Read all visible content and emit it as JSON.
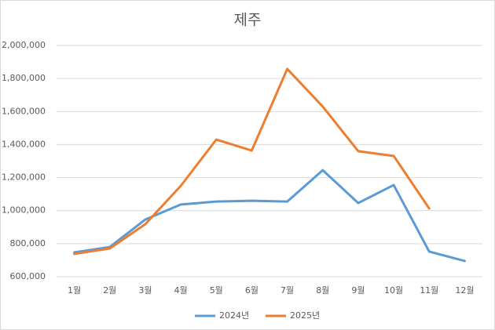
{
  "chart_data": {
    "type": "line",
    "title": "제주",
    "categories": [
      "1월",
      "2월",
      "3월",
      "4월",
      "5월",
      "6월",
      "7월",
      "8월",
      "9월",
      "10월",
      "11월",
      "12월"
    ],
    "series": [
      {
        "name": "2024년",
        "color": "#5b9bd5",
        "values": [
          747000,
          780000,
          946000,
          1037000,
          1055000,
          1060000,
          1055000,
          1245000,
          1046000,
          1155000,
          752000,
          695000
        ]
      },
      {
        "name": "2025년",
        "color": "#ed7d31",
        "values": [
          738000,
          771000,
          918000,
          1150000,
          1430000,
          1364000,
          1858000,
          1630000,
          1360000,
          1331000,
          1013000,
          null
        ]
      }
    ],
    "ylim": [
      600000,
      2000000
    ],
    "yticks": [
      {
        "value": 600000,
        "label": "600,000"
      },
      {
        "value": 800000,
        "label": "800,000"
      },
      {
        "value": 1000000,
        "label": "1,000,000"
      },
      {
        "value": 1200000,
        "label": "1,200,000"
      },
      {
        "value": 1400000,
        "label": "1,400,000"
      },
      {
        "value": 1600000,
        "label": "1,600,000"
      },
      {
        "value": 1800000,
        "label": "1,800,000"
      },
      {
        "value": 2000000,
        "label": "2,000,000"
      }
    ],
    "grid": true,
    "legend": "bottom"
  }
}
